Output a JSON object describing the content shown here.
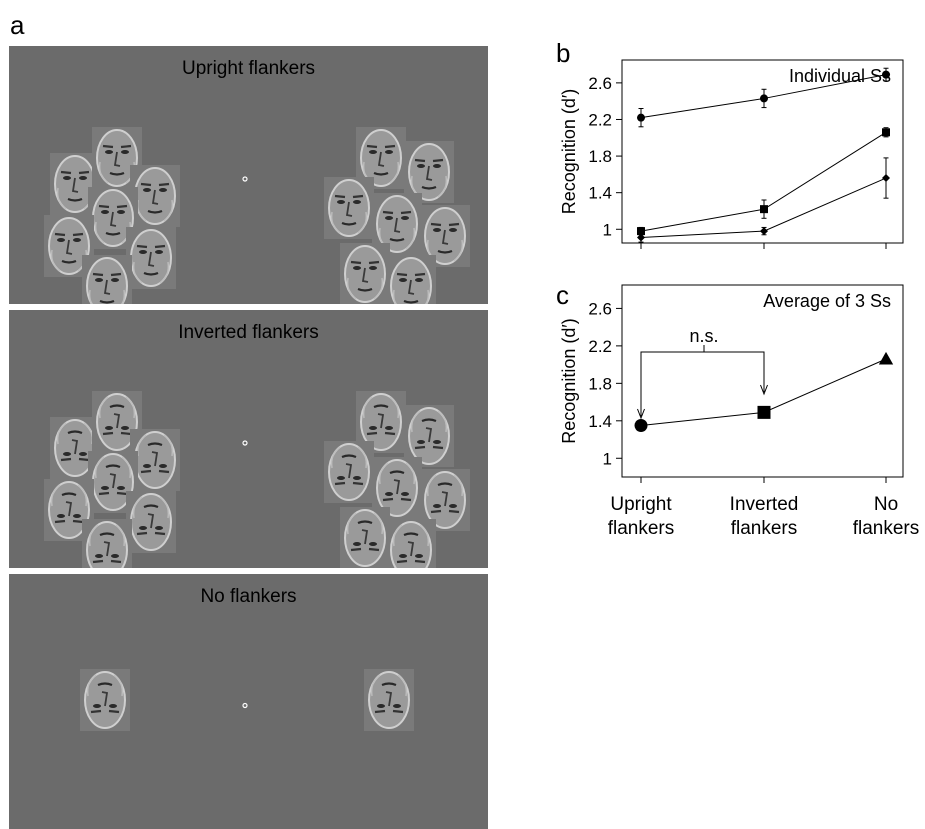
{
  "panels": {
    "a": {
      "letter": "a",
      "stimuli": [
        {
          "title": "Upright flankers",
          "condition": "upright"
        },
        {
          "title": "Inverted flankers",
          "condition": "inverted"
        },
        {
          "title": "No flankers",
          "condition": "none"
        }
      ]
    },
    "b": {
      "letter": "b"
    },
    "c": {
      "letter": "c"
    }
  },
  "chart_data": [
    {
      "type": "line",
      "panel": "b",
      "annotation": "Individual Ss",
      "ylabel": "Recognition (d′)",
      "categories": [
        "Upright flankers",
        "Inverted flankers",
        "No flankers"
      ],
      "ylim": [
        0.85,
        2.85
      ],
      "yticks": [
        1,
        1.4,
        1.8,
        2.2,
        2.6
      ],
      "series": [
        {
          "marker": "circle",
          "values": [
            2.22,
            2.43,
            2.69
          ],
          "errors": [
            0.1,
            0.1,
            0.07
          ]
        },
        {
          "marker": "square",
          "values": [
            0.98,
            1.22,
            2.06
          ],
          "errors": [
            0.04,
            0.1,
            0.05
          ]
        },
        {
          "marker": "diamond",
          "values": [
            0.91,
            0.98,
            1.56
          ],
          "errors": [
            0.05,
            0.04,
            0.22
          ]
        }
      ]
    },
    {
      "type": "line",
      "panel": "c",
      "annotation": "Average of 3 Ss",
      "ylabel": "Recognition (d′)",
      "categories": [
        "Upright flankers",
        "Inverted flankers",
        "No flankers"
      ],
      "category_lines": [
        [
          "Upright",
          "flankers"
        ],
        [
          "Inverted",
          "flankers"
        ],
        [
          "No",
          "flankers"
        ]
      ],
      "ylim": [
        0.8,
        2.85
      ],
      "yticks": [
        1,
        1.4,
        1.8,
        2.2,
        2.6
      ],
      "series": [
        {
          "markers": [
            "circle",
            "square",
            "triangle"
          ],
          "values": [
            1.35,
            1.49,
            2.06
          ]
        }
      ],
      "comparison": {
        "label": "n.s.",
        "from": 0,
        "to": 1
      }
    }
  ]
}
